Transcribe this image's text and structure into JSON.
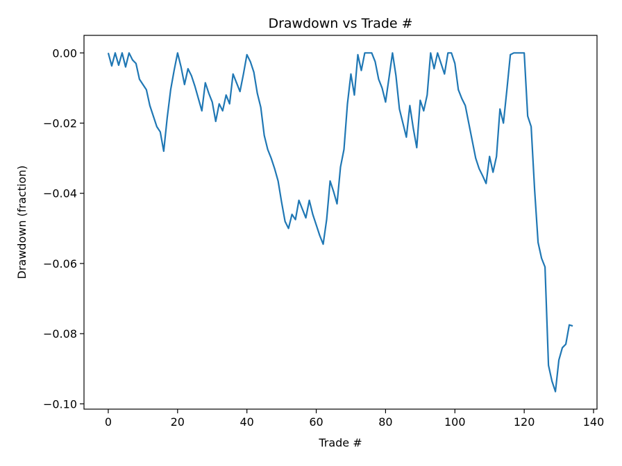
{
  "chart_data": {
    "type": "line",
    "title": "Drawdown vs Trade #",
    "xlabel": "Trade #",
    "ylabel": "Drawdown (fraction)",
    "xlim": [
      -7,
      141
    ],
    "ylim": [
      -0.1015,
      0.005
    ],
    "xticks": [
      0,
      20,
      40,
      60,
      80,
      100,
      120,
      140
    ],
    "xtick_labels": [
      "0",
      "20",
      "40",
      "60",
      "80",
      "100",
      "120",
      "140"
    ],
    "yticks": [
      0.0,
      -0.02,
      -0.04,
      -0.06,
      -0.08,
      -0.1
    ],
    "ytick_labels": [
      "0.00",
      "−0.02",
      "−0.04",
      "−0.06",
      "−0.08",
      "−0.10"
    ],
    "grid": false,
    "legend": "none",
    "series_color": "#1f77b4",
    "series": [
      {
        "x": [
          0,
          1,
          2,
          3,
          4,
          5,
          6,
          7,
          8,
          9,
          10,
          11,
          12,
          13,
          14,
          15,
          16,
          17,
          18,
          19,
          20,
          21,
          22,
          23,
          24,
          25,
          26,
          27,
          28,
          29,
          30,
          31,
          32,
          33,
          34,
          35,
          36,
          37,
          38,
          39,
          40,
          41,
          42,
          43,
          44,
          45,
          46,
          47,
          48,
          49,
          50,
          51,
          52,
          53,
          54,
          55,
          56,
          57,
          58,
          59,
          60,
          61,
          62,
          63,
          64,
          65,
          66,
          67,
          68,
          69,
          70,
          71,
          72,
          73,
          74,
          75,
          76,
          77,
          78,
          79,
          80,
          81,
          82,
          83,
          84,
          85,
          86,
          87,
          88,
          89,
          90,
          91,
          92,
          93,
          94,
          95,
          96,
          97,
          98,
          99,
          100,
          101,
          102,
          103,
          104,
          105,
          106,
          107,
          108,
          109,
          110,
          111,
          112,
          113,
          114,
          115,
          116,
          117,
          118,
          119,
          120,
          121,
          122,
          123,
          124,
          125,
          126,
          127,
          128,
          129,
          130,
          131,
          132,
          133,
          134
        ],
        "values": [
          0.0,
          -0.0037,
          0.0,
          -0.0035,
          0.0,
          -0.004,
          0.0,
          -0.002,
          -0.003,
          -0.0075,
          -0.009,
          -0.0105,
          -0.015,
          -0.018,
          -0.021,
          -0.0225,
          -0.028,
          -0.0185,
          -0.0105,
          -0.005,
          0.0,
          -0.004,
          -0.009,
          -0.0045,
          -0.0065,
          -0.0095,
          -0.013,
          -0.0165,
          -0.0085,
          -0.0115,
          -0.014,
          -0.0195,
          -0.0145,
          -0.0165,
          -0.012,
          -0.0145,
          -0.006,
          -0.0085,
          -0.011,
          -0.006,
          -0.0005,
          -0.0025,
          -0.0055,
          -0.0115,
          -0.0155,
          -0.0235,
          -0.0275,
          -0.03,
          -0.033,
          -0.0365,
          -0.0425,
          -0.048,
          -0.05,
          -0.046,
          -0.0475,
          -0.042,
          -0.0445,
          -0.047,
          -0.042,
          -0.046,
          -0.049,
          -0.052,
          -0.0545,
          -0.0475,
          -0.0365,
          -0.0395,
          -0.043,
          -0.0325,
          -0.0275,
          -0.0145,
          -0.006,
          -0.012,
          -0.0005,
          -0.005,
          0.0,
          0.0,
          0.0,
          -0.0025,
          -0.0075,
          -0.01,
          -0.014,
          -0.007,
          0.0,
          -0.0065,
          -0.016,
          -0.02,
          -0.024,
          -0.015,
          -0.0215,
          -0.027,
          -0.0135,
          -0.0165,
          -0.012,
          0.0,
          -0.0045,
          0.0,
          -0.003,
          -0.006,
          0.0,
          0.0,
          -0.003,
          -0.0105,
          -0.013,
          -0.015,
          -0.02,
          -0.025,
          -0.03,
          -0.033,
          -0.035,
          -0.0372,
          -0.0295,
          -0.034,
          -0.0295,
          -0.016,
          -0.02,
          -0.0105,
          -0.0005,
          0.0,
          0.0,
          0.0,
          0.0,
          -0.018,
          -0.021,
          -0.039,
          -0.054,
          -0.0585,
          -0.061,
          -0.089,
          -0.0935,
          -0.0965,
          -0.0875,
          -0.084,
          -0.083,
          -0.0775,
          -0.0778
        ]
      }
    ]
  }
}
